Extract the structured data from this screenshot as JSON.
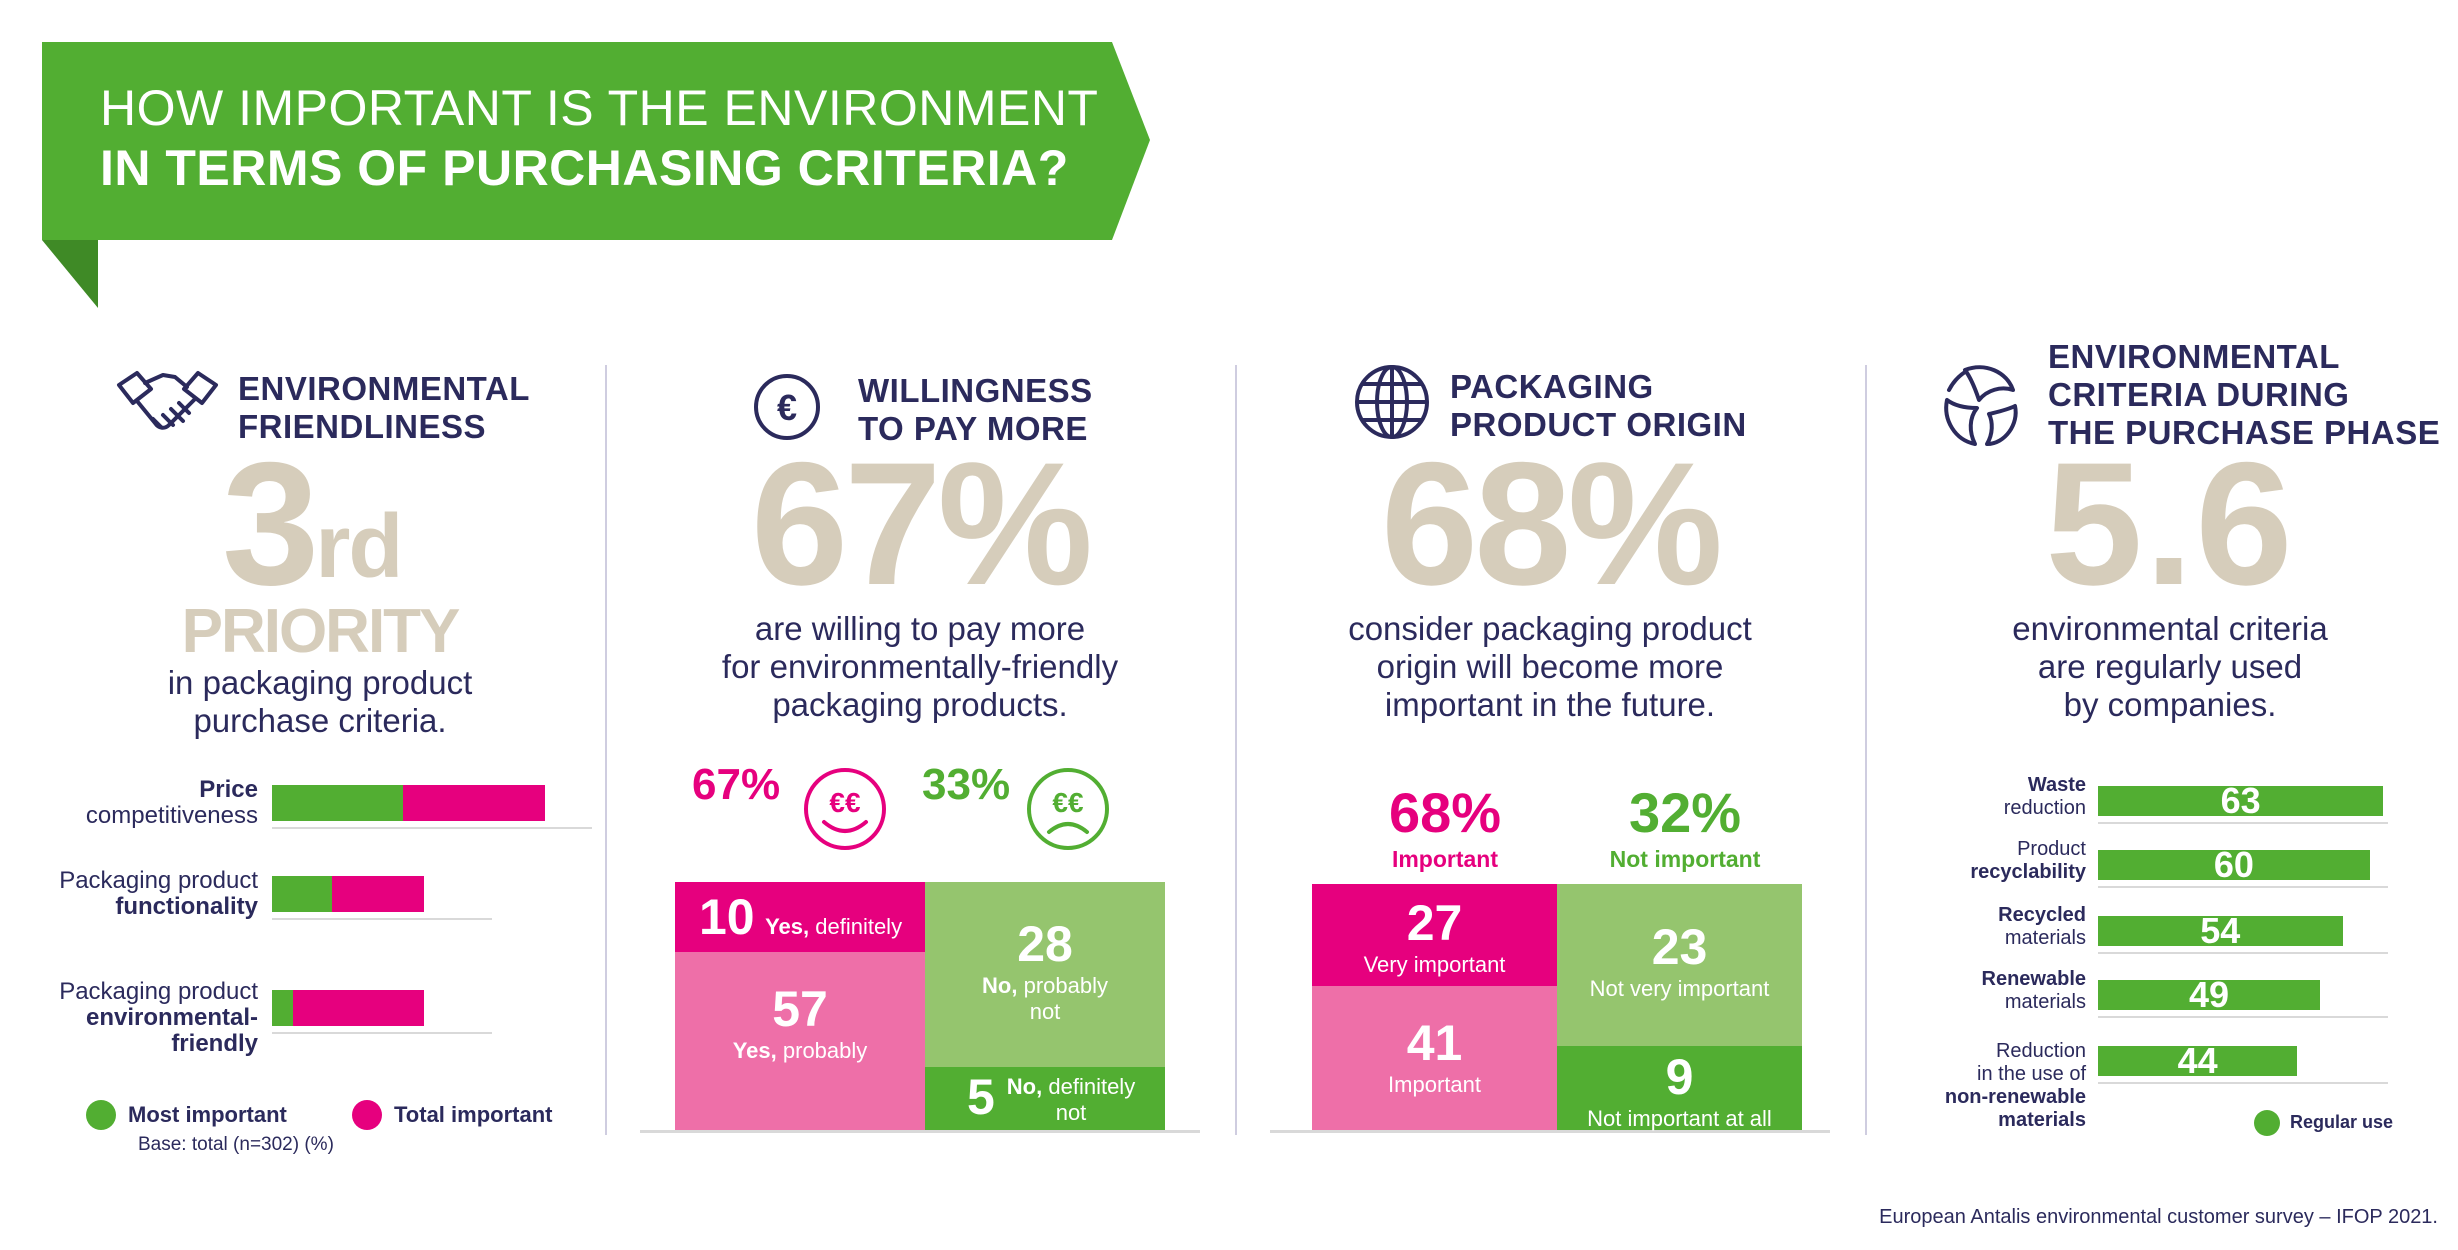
{
  "header": {
    "title_line1": "HOW IMPORTANT IS THE ENVIRONMENT",
    "title_line2": "IN TERMS OF PURCHASING CRITERIA?"
  },
  "section1": {
    "heading_line1": "ENVIRONMENTAL",
    "heading_line2": "FRIENDLINESS",
    "big_value": "3",
    "big_suffix": "rd",
    "big_label": "PRIORITY",
    "desc_line1": "in packaging product",
    "desc_line2": "purchase criteria.",
    "legend_most": "Most important",
    "legend_total": "Total important",
    "base": "Base: total  (n=302)  (%)"
  },
  "section2": {
    "heading_line1": "WILLINGNESS",
    "heading_line2": "TO PAY MORE",
    "big_value": "67%",
    "desc_line1": "are willing to pay more",
    "desc_line2": "for environmentally-friendly",
    "desc_line3": "packaging products.",
    "pct_yes": "67%",
    "pct_no": "33%",
    "euro_text": "€€",
    "box_yes_def_num": "10",
    "box_yes_def_label_bold": "Yes,",
    "box_yes_def_label": " definitely",
    "box_yes_prob_num": "57",
    "box_yes_prob_label_bold": "Yes,",
    "box_yes_prob_label": " probably",
    "box_no_prob_num": "28",
    "box_no_prob_label_bold": "No,",
    "box_no_prob_label1": " probably",
    "box_no_prob_label2": "not",
    "box_no_def_num": "5",
    "box_no_def_label_bold": "No,",
    "box_no_def_label1": " definitely",
    "box_no_def_label2": "not"
  },
  "section3": {
    "heading_line1": "PACKAGING",
    "heading_line2": "PRODUCT ORIGIN",
    "big_value": "68%",
    "desc_line1": "consider packaging product",
    "desc_line2": "origin will become more",
    "desc_line3": "important in the future.",
    "pct_imp": "68%",
    "pct_imp_label": "Important",
    "pct_not": "32%",
    "pct_not_label": "Not important",
    "box_very_num": "27",
    "box_very_label": "Very important",
    "box_imp_num": "41",
    "box_imp_label": "Important",
    "box_notvery_num": "23",
    "box_notvery_label": "Not very important",
    "box_notall_num": "9",
    "box_notall_label": "Not important at all"
  },
  "section4": {
    "heading_line1": "ENVIRONMENTAL",
    "heading_line2": "CRITERIA DURING",
    "heading_line3": "THE PURCHASE PHASE",
    "big_value": "5.6",
    "desc_line1": "environmental criteria",
    "desc_line2": "are regularly used",
    "desc_line3": "by companies.",
    "legend_regular": "Regular use"
  },
  "footer": {
    "source": "European Antalis environmental customer survey – IFOP 2021."
  },
  "colors": {
    "green": "#52ae32",
    "light_green": "#95c56e",
    "pink": "#e6007e",
    "light_pink": "#ee6fa8",
    "navy": "#2b2a5c",
    "beige": "#d6cdbb"
  },
  "chart_data": [
    {
      "type": "bar",
      "orientation": "horizontal",
      "stacked": true,
      "categories": [
        {
          "line1": "Price",
          "line2": "competitiveness",
          "bold_line": 1
        },
        {
          "line1": "Packaging product",
          "line2": "functionality",
          "bold_line": 2
        },
        {
          "line1": "Packaging product",
          "line2": "environmental-",
          "line3": "friendly",
          "bold_line": 2
        }
      ],
      "series": [
        {
          "name": "Most important",
          "values": [
            37,
            17,
            6
          ]
        },
        {
          "name": "Total important",
          "values": [
            77,
            43,
            43
          ]
        }
      ]
    },
    {
      "type": "bar",
      "orientation": "horizontal",
      "categories": [
        {
          "bold": "Waste",
          "normal": "reduction",
          "bold_first": true
        },
        {
          "normal": "Product",
          "bold": "recyclability",
          "bold_first": false
        },
        {
          "bold": "Recycled",
          "normal": "materials",
          "bold_first": true
        },
        {
          "bold": "Renewable",
          "normal": "materials",
          "bold_first": true
        },
        {
          "normal": "Reduction\nin the use of",
          "bold": "non-renewable\nmaterials",
          "bold_first": false
        }
      ],
      "series": [
        {
          "name": "Regular use",
          "values": [
            63,
            60,
            54,
            49,
            44
          ]
        }
      ]
    }
  ]
}
